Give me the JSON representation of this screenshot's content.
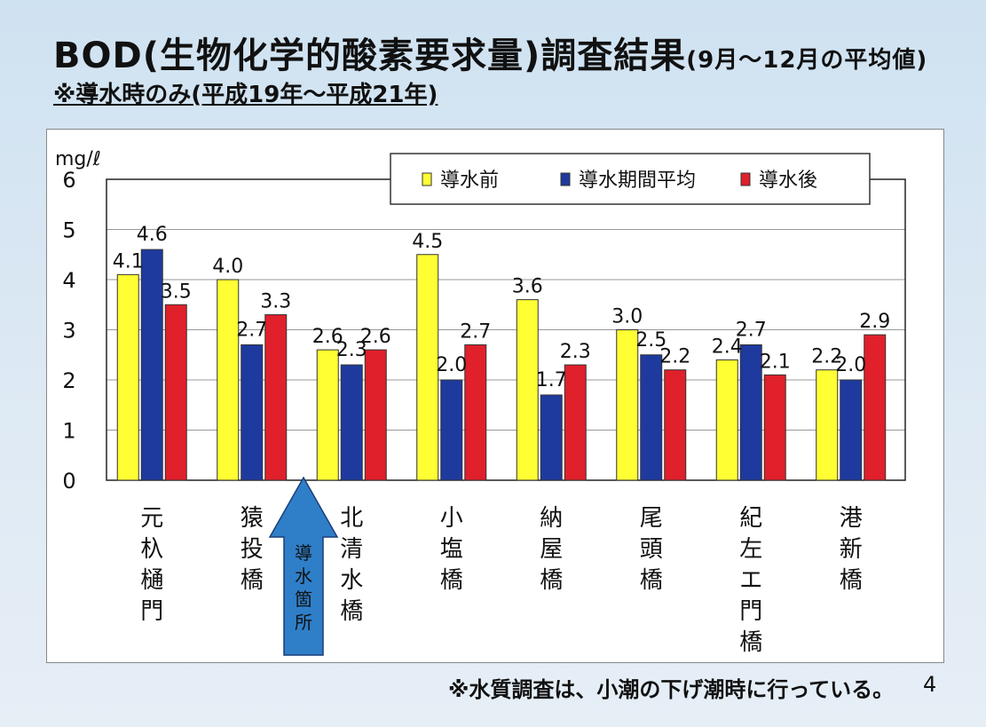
{
  "page": {
    "title_main": "BOD(生物化学的酸素要求量)調査結果",
    "title_suffix": "(9月～12月の平均値)",
    "subtitle": "※導水時のみ(平成19年～平成21年)",
    "footnote": "※水質調査は、小潮の下げ潮時に行っている。",
    "page_number": "4"
  },
  "arrow": {
    "label": "導水箇所",
    "color": "#2f7ec8"
  },
  "chart_data": {
    "type": "bar",
    "title": "BOD(生物化学的酸素要求量)調査結果",
    "unit": "mg/ℓ",
    "ylim": [
      0,
      6
    ],
    "yticks": [
      "0",
      "1",
      "2",
      "3",
      "4",
      "5",
      "6"
    ],
    "legend_position": "top-right",
    "grid": "horizontal",
    "categories": [
      "元杁樋門",
      "猿投橋",
      "北清水橋",
      "小塩橋",
      "納屋橋",
      "尾頭橋",
      "紀左エ門橋",
      "港新橋"
    ],
    "series": [
      {
        "name": "導水前",
        "color": "#ffff33",
        "values": [
          4.1,
          4.0,
          2.6,
          4.5,
          3.6,
          3.0,
          2.4,
          2.2
        ],
        "labels": [
          "4.1",
          "4.0",
          "2.6",
          "4.5",
          "3.6",
          "3.0",
          "2.4",
          "2.2"
        ]
      },
      {
        "name": "導水期間平均",
        "color": "#1e3a9e",
        "values": [
          4.6,
          2.7,
          2.3,
          2.0,
          1.7,
          2.5,
          2.7,
          2.0
        ],
        "labels": [
          "4.6",
          "2.7",
          "2.3",
          "2.0",
          "1.7",
          "2.5",
          "2.7",
          "2.0"
        ]
      },
      {
        "name": "導水後",
        "color": "#e0202a",
        "values": [
          3.5,
          3.3,
          2.6,
          2.7,
          2.3,
          2.2,
          2.1,
          2.9
        ],
        "labels": [
          "3.5",
          "3.3",
          "2.6",
          "2.7",
          "2.3",
          "2.2",
          "2.1",
          "2.9"
        ]
      }
    ]
  }
}
